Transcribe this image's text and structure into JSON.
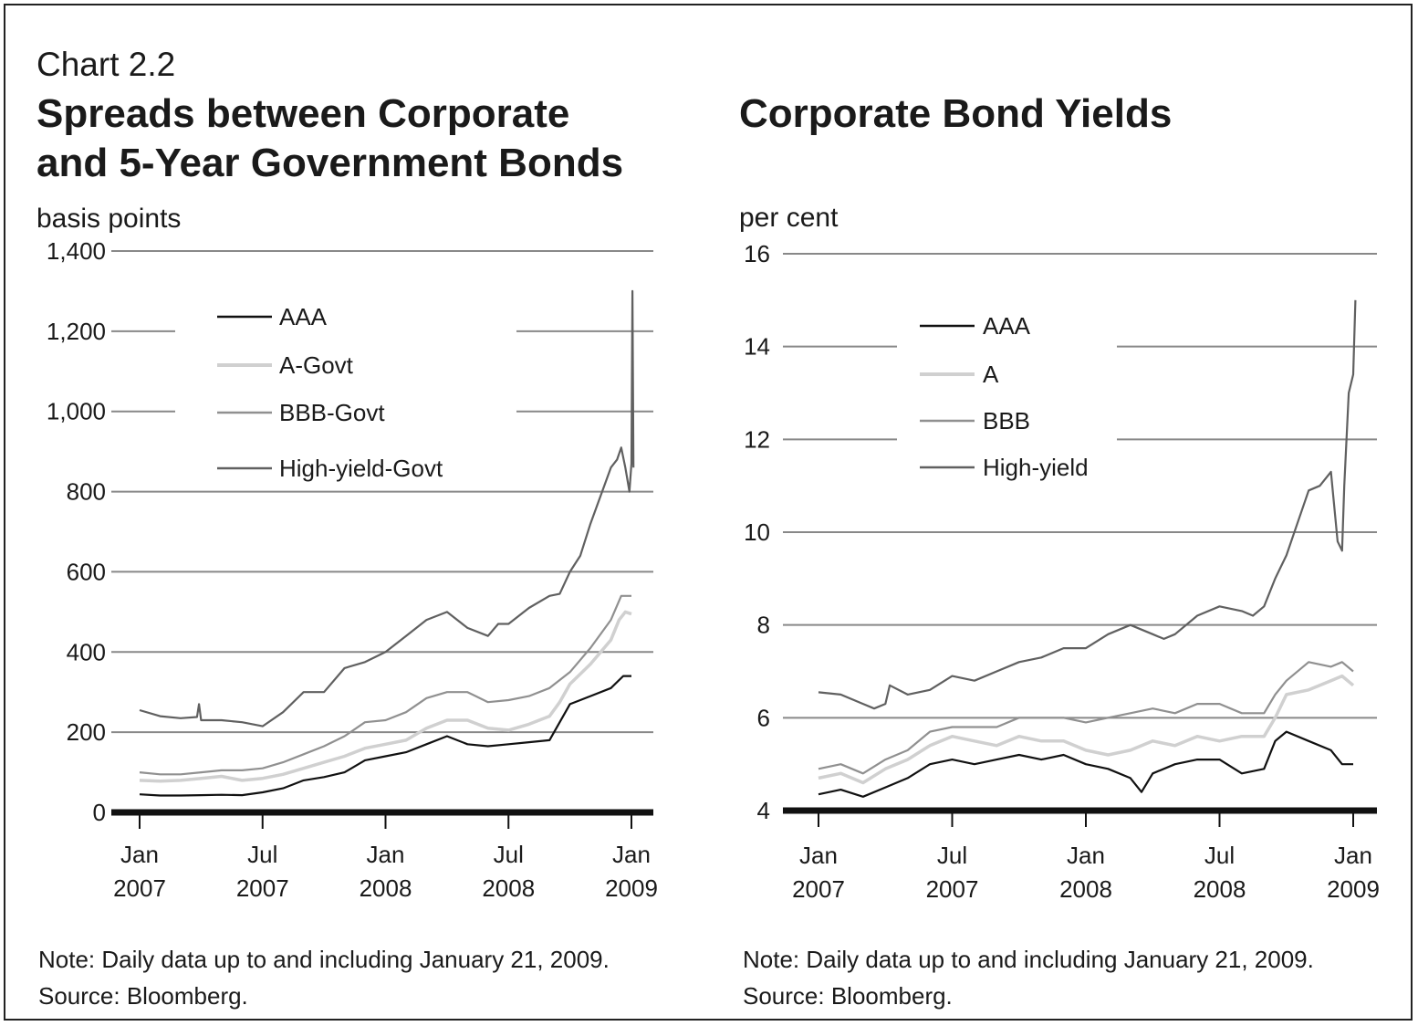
{
  "header": {
    "chart_number": "Chart 2.2"
  },
  "left": {
    "title_line1": "Spreads between Corporate",
    "title_line2": "and 5-Year Government Bonds",
    "unit": "basis points",
    "note": "Note: Daily data up to and including January 21, 2009.",
    "source": "Source: Bloomberg."
  },
  "right": {
    "title": "Corporate Bond Yields",
    "unit": "per cent",
    "note": "Note: Daily data up to and including January 21, 2009.",
    "source": "Source: Bloomberg."
  },
  "colors": {
    "AAA": "#111111",
    "A": "#d0d0d0",
    "BBB": "#909090",
    "HighYield": "#606060",
    "grid": "#888888",
    "axis": "#111111"
  },
  "chart_data": [
    {
      "type": "line",
      "title": "Spreads between Corporate and 5-Year Government Bonds",
      "ylabel": "basis points",
      "ylim": [
        0,
        1400
      ],
      "yticks": [
        {
          "value": 0,
          "label": "0"
        },
        {
          "value": 200,
          "label": "200"
        },
        {
          "value": 400,
          "label": "400"
        },
        {
          "value": 600,
          "label": "600"
        },
        {
          "value": 800,
          "label": "800"
        },
        {
          "value": 1000,
          "label": "1,000"
        },
        {
          "value": 1200,
          "label": "1,200"
        },
        {
          "value": 1400,
          "label": "1,400"
        }
      ],
      "xlim": [
        0,
        24.6
      ],
      "xticks": [
        {
          "value": 0,
          "line1": "Jan",
          "line2": "2007"
        },
        {
          "value": 6,
          "line1": "Jul",
          "line2": "2007"
        },
        {
          "value": 12,
          "line1": "Jan",
          "line2": "2008"
        },
        {
          "value": 18,
          "line1": "Jul",
          "line2": "2008"
        },
        {
          "value": 24,
          "line1": "Jan",
          "line2": "2009"
        }
      ],
      "grid": true,
      "legend_position": "upper-left",
      "series": [
        {
          "name": "AAA",
          "color_key": "AAA",
          "x": [
            0,
            1,
            2,
            3,
            4,
            5,
            6,
            7,
            8,
            9,
            10,
            11,
            12,
            13,
            14,
            15,
            16,
            17,
            18,
            19,
            20,
            21,
            21.5,
            22,
            23,
            23.6,
            24
          ],
          "values": [
            45,
            42,
            42,
            43,
            44,
            43,
            50,
            60,
            80,
            88,
            100,
            130,
            140,
            150,
            170,
            190,
            170,
            165,
            170,
            175,
            180,
            270,
            280,
            290,
            310,
            340,
            340
          ]
        },
        {
          "name": "A-Govt",
          "color_key": "A",
          "x": [
            0,
            1,
            2,
            3,
            4,
            5,
            6,
            7,
            8,
            9,
            10,
            11,
            12,
            13,
            14,
            15,
            16,
            17,
            18,
            19,
            20,
            20.5,
            21,
            22,
            23,
            23.4,
            23.7,
            24
          ],
          "values": [
            80,
            78,
            80,
            85,
            90,
            80,
            85,
            95,
            110,
            125,
            140,
            160,
            170,
            180,
            210,
            230,
            230,
            210,
            205,
            220,
            240,
            275,
            320,
            370,
            430,
            480,
            500,
            495
          ]
        },
        {
          "name": "BBB-Govt",
          "color_key": "BBB",
          "x": [
            0,
            1,
            2,
            3,
            4,
            5,
            6,
            7,
            8,
            9,
            10,
            11,
            12,
            13,
            14,
            15,
            16,
            17,
            18,
            19,
            20,
            21,
            22,
            23,
            23.5,
            24
          ],
          "values": [
            100,
            95,
            95,
            100,
            105,
            105,
            110,
            125,
            145,
            165,
            190,
            225,
            230,
            250,
            285,
            300,
            300,
            275,
            280,
            290,
            310,
            350,
            410,
            480,
            540,
            540
          ]
        },
        {
          "name": "High-yield-Govt",
          "color_key": "HighYield",
          "x": [
            0,
            1,
            2,
            2.8,
            2.9,
            3,
            4,
            5,
            6,
            7,
            8,
            9,
            10,
            11,
            12,
            13,
            14,
            15,
            16,
            17,
            17.5,
            18,
            19,
            20,
            20.5,
            21,
            21.5,
            22,
            22.5,
            23,
            23.3,
            23.5,
            23.7,
            23.9,
            24,
            24.05,
            24.1
          ],
          "values": [
            255,
            240,
            235,
            238,
            270,
            230,
            230,
            225,
            215,
            250,
            300,
            300,
            360,
            375,
            400,
            440,
            480,
            500,
            460,
            440,
            470,
            470,
            510,
            540,
            545,
            600,
            640,
            720,
            790,
            860,
            880,
            910,
            860,
            800,
            870,
            1300,
            860
          ]
        }
      ]
    },
    {
      "type": "line",
      "title": "Corporate Bond Yields",
      "ylabel": "per cent",
      "ylim": [
        4,
        16
      ],
      "yticks": [
        {
          "value": 4,
          "label": "4"
        },
        {
          "value": 6,
          "label": "6"
        },
        {
          "value": 8,
          "label": "8"
        },
        {
          "value": 10,
          "label": "10"
        },
        {
          "value": 12,
          "label": "12"
        },
        {
          "value": 14,
          "label": "14"
        },
        {
          "value": 16,
          "label": "16"
        }
      ],
      "xlim": [
        0,
        24.6
      ],
      "xticks": [
        {
          "value": 0,
          "line1": "Jan",
          "line2": "2007"
        },
        {
          "value": 6,
          "line1": "Jul",
          "line2": "2007"
        },
        {
          "value": 12,
          "line1": "Jan",
          "line2": "2008"
        },
        {
          "value": 18,
          "line1": "Jul",
          "line2": "2008"
        },
        {
          "value": 24,
          "line1": "Jan",
          "line2": "2009"
        }
      ],
      "grid": true,
      "legend_position": "upper-left",
      "series": [
        {
          "name": "AAA",
          "color_key": "AAA",
          "x": [
            0,
            1,
            2,
            3,
            4,
            5,
            6,
            7,
            8,
            9,
            10,
            11,
            12,
            13,
            14,
            14.5,
            15,
            16,
            17,
            18,
            19,
            20,
            20.5,
            21,
            22,
            23,
            23.5,
            24
          ],
          "values": [
            4.35,
            4.45,
            4.3,
            4.5,
            4.7,
            5.0,
            5.1,
            5.0,
            5.1,
            5.2,
            5.1,
            5.2,
            5.0,
            4.9,
            4.7,
            4.4,
            4.8,
            5.0,
            5.1,
            5.1,
            4.8,
            4.9,
            5.5,
            5.7,
            5.5,
            5.3,
            5.0,
            5.0
          ]
        },
        {
          "name": "A",
          "color_key": "A",
          "x": [
            0,
            1,
            2,
            3,
            4,
            5,
            6,
            7,
            8,
            9,
            10,
            11,
            12,
            13,
            14,
            15,
            16,
            17,
            18,
            19,
            20,
            20.5,
            21,
            22,
            23,
            23.5,
            24
          ],
          "values": [
            4.7,
            4.8,
            4.6,
            4.9,
            5.1,
            5.4,
            5.6,
            5.5,
            5.4,
            5.6,
            5.5,
            5.5,
            5.3,
            5.2,
            5.3,
            5.5,
            5.4,
            5.6,
            5.5,
            5.6,
            5.6,
            6.0,
            6.5,
            6.6,
            6.8,
            6.9,
            6.7
          ]
        },
        {
          "name": "BBB",
          "color_key": "BBB",
          "x": [
            0,
            1,
            2,
            3,
            4,
            5,
            6,
            7,
            8,
            9,
            10,
            11,
            12,
            13,
            14,
            15,
            16,
            17,
            18,
            19,
            20,
            20.5,
            21,
            22,
            23,
            23.5,
            24
          ],
          "values": [
            4.9,
            5.0,
            4.8,
            5.1,
            5.3,
            5.7,
            5.8,
            5.8,
            5.8,
            6.0,
            6.0,
            6.0,
            5.9,
            6.0,
            6.1,
            6.2,
            6.1,
            6.3,
            6.3,
            6.1,
            6.1,
            6.5,
            6.8,
            7.2,
            7.1,
            7.2,
            7.0
          ]
        },
        {
          "name": "High-yield",
          "color_key": "HighYield",
          "x": [
            0,
            1,
            2,
            2.5,
            3,
            3.2,
            4,
            5,
            6,
            7,
            8,
            9,
            10,
            11,
            12,
            13,
            14,
            15,
            15.5,
            16,
            17,
            18,
            19,
            19.5,
            20,
            20.5,
            21,
            21.5,
            22,
            22.5,
            23,
            23.3,
            23.5,
            23.6,
            23.8,
            24,
            24.1
          ],
          "values": [
            6.55,
            6.5,
            6.3,
            6.2,
            6.3,
            6.7,
            6.5,
            6.6,
            6.9,
            6.8,
            7.0,
            7.2,
            7.3,
            7.5,
            7.5,
            7.8,
            8.0,
            7.8,
            7.7,
            7.8,
            8.2,
            8.4,
            8.3,
            8.2,
            8.4,
            9.0,
            9.5,
            10.2,
            10.9,
            11.0,
            11.3,
            9.8,
            9.6,
            11.0,
            13.0,
            13.4,
            15.0
          ]
        }
      ]
    }
  ]
}
